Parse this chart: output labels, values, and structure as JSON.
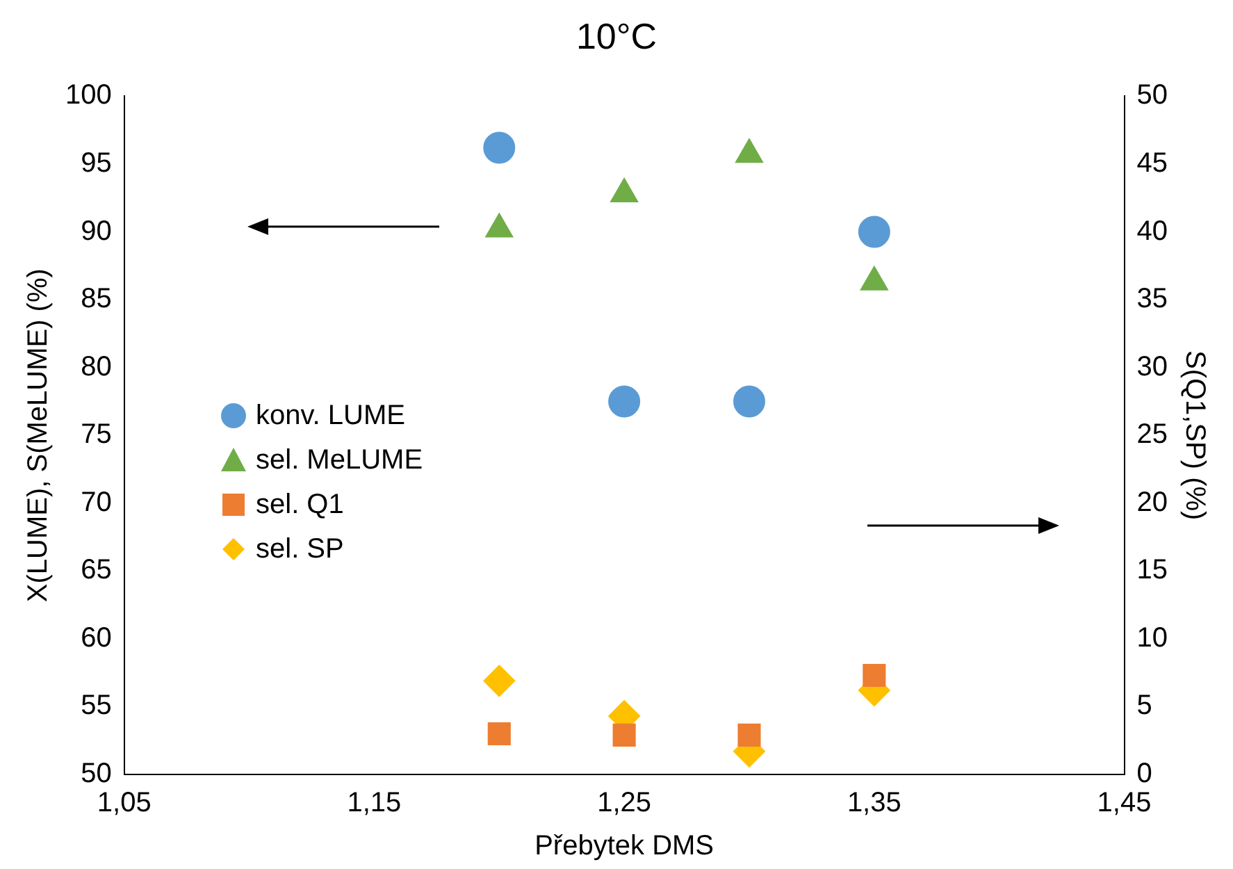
{
  "chart_data": {
    "type": "scatter",
    "title": "10°C",
    "xlabel": "Přebytek DMS",
    "ylabel": "X(LUME), S(MeLUME) (%)",
    "y2label": "S(Q1,SP) (%)",
    "x": [
      1.2,
      1.25,
      1.3,
      1.35
    ],
    "series": [
      {
        "name": "konv. LUME",
        "color": "#5b9bd5",
        "marker": "circle",
        "values": [
          96.2,
          77.5,
          77.5,
          90.0
        ]
      },
      {
        "name": "sel. MeLUME",
        "color": "#70ad47",
        "marker": "triangle",
        "values": [
          90.2,
          92.8,
          95.7,
          86.3
        ]
      },
      {
        "name": "sel. Q1",
        "color": "#ed7d31",
        "marker": "square",
        "axis": "y2",
        "values": [
          3.0,
          2.9,
          2.9,
          7.3
        ]
      },
      {
        "name": "sel. SP",
        "color": "#ffc000",
        "marker": "diamond",
        "axis": "y2",
        "values": [
          6.9,
          4.3,
          1.7,
          6.2
        ]
      }
    ],
    "xlim": [
      1.05,
      1.45
    ],
    "xticks": [
      {
        "value": 1.05,
        "label": "1,05"
      },
      {
        "value": 1.15,
        "label": "1,15"
      },
      {
        "value": 1.25,
        "label": "1,25"
      },
      {
        "value": 1.35,
        "label": "1,35"
      },
      {
        "value": 1.45,
        "label": "1,45"
      }
    ],
    "ylim": [
      50,
      100
    ],
    "yticks": [
      50,
      55,
      60,
      65,
      70,
      75,
      80,
      85,
      90,
      95,
      100
    ],
    "y2lim": [
      0,
      50
    ],
    "y2ticks": [
      0,
      5,
      10,
      15,
      20,
      25,
      30,
      35,
      40,
      45,
      50
    ],
    "grid": false,
    "legend": "left"
  }
}
